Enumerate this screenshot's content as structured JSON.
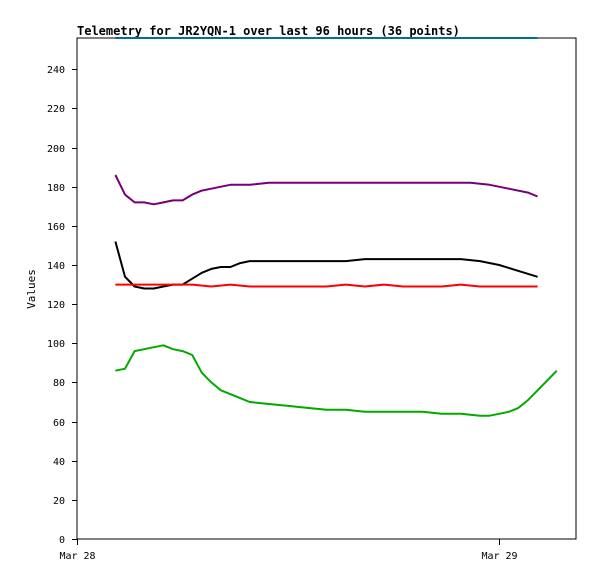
{
  "chart_data": {
    "type": "line",
    "title": "Telemetry for JR2YQN-1 over last 96 hours (36 points)",
    "xlabel": "",
    "ylabel": "Values",
    "ylim": [
      0,
      256
    ],
    "xlim": [
      0,
      52
    ],
    "y_ticks": [
      0,
      20,
      40,
      60,
      80,
      100,
      120,
      140,
      160,
      180,
      200,
      220,
      240
    ],
    "x_ticks": [
      {
        "x": 0,
        "label": "Mar 28"
      },
      {
        "x": 44,
        "label": "Mar 29"
      }
    ],
    "grid": false,
    "legend": "none",
    "series": [
      {
        "color": "#007090",
        "points": [
          [
            4,
            256
          ],
          [
            48,
            256
          ]
        ]
      },
      {
        "color": "#770077",
        "points": [
          [
            4,
            186
          ],
          [
            5,
            176
          ],
          [
            6,
            172
          ],
          [
            7,
            172
          ],
          [
            8,
            171
          ],
          [
            9,
            172
          ],
          [
            10,
            173
          ],
          [
            11,
            173
          ],
          [
            12,
            176
          ],
          [
            13,
            178
          ],
          [
            14,
            179
          ],
          [
            15,
            180
          ],
          [
            16,
            181
          ],
          [
            18,
            181
          ],
          [
            20,
            182
          ],
          [
            22,
            182
          ],
          [
            25,
            182
          ],
          [
            28,
            182
          ],
          [
            31,
            182
          ],
          [
            33,
            182
          ],
          [
            35,
            182
          ],
          [
            37,
            182
          ],
          [
            39,
            182
          ],
          [
            41,
            182
          ],
          [
            43,
            181
          ],
          [
            45,
            179
          ],
          [
            47,
            177
          ],
          [
            48,
            175
          ]
        ]
      },
      {
        "color": "#000000",
        "points": [
          [
            4,
            152
          ],
          [
            5,
            134
          ],
          [
            6,
            129
          ],
          [
            7,
            128
          ],
          [
            8,
            128
          ],
          [
            9,
            129
          ],
          [
            10,
            130
          ],
          [
            11,
            130
          ],
          [
            12,
            133
          ],
          [
            13,
            136
          ],
          [
            14,
            138
          ],
          [
            15,
            139
          ],
          [
            16,
            139
          ],
          [
            17,
            141
          ],
          [
            18,
            142
          ],
          [
            20,
            142
          ],
          [
            22,
            142
          ],
          [
            24,
            142
          ],
          [
            26,
            142
          ],
          [
            28,
            142
          ],
          [
            30,
            143
          ],
          [
            32,
            143
          ],
          [
            34,
            143
          ],
          [
            36,
            143
          ],
          [
            38,
            143
          ],
          [
            40,
            143
          ],
          [
            42,
            142
          ],
          [
            44,
            140
          ],
          [
            46,
            137
          ],
          [
            48,
            134
          ]
        ]
      },
      {
        "color": "#ff0000",
        "points": [
          [
            4,
            130
          ],
          [
            6,
            130
          ],
          [
            8,
            130
          ],
          [
            10,
            130
          ],
          [
            12,
            130
          ],
          [
            14,
            129
          ],
          [
            16,
            130
          ],
          [
            18,
            129
          ],
          [
            20,
            129
          ],
          [
            22,
            129
          ],
          [
            24,
            129
          ],
          [
            26,
            129
          ],
          [
            28,
            130
          ],
          [
            30,
            129
          ],
          [
            32,
            130
          ],
          [
            34,
            129
          ],
          [
            36,
            129
          ],
          [
            38,
            129
          ],
          [
            40,
            130
          ],
          [
            42,
            129
          ],
          [
            44,
            129
          ],
          [
            46,
            129
          ],
          [
            48,
            129
          ]
        ]
      },
      {
        "color": "#00aa00",
        "points": [
          [
            4,
            86
          ],
          [
            5,
            87
          ],
          [
            6,
            96
          ],
          [
            7,
            97
          ],
          [
            8,
            98
          ],
          [
            9,
            99
          ],
          [
            10,
            97
          ],
          [
            11,
            96
          ],
          [
            12,
            94
          ],
          [
            13,
            85
          ],
          [
            14,
            80
          ],
          [
            15,
            76
          ],
          [
            16,
            74
          ],
          [
            17,
            72
          ],
          [
            18,
            70
          ],
          [
            20,
            69
          ],
          [
            22,
            68
          ],
          [
            24,
            67
          ],
          [
            26,
            66
          ],
          [
            28,
            66
          ],
          [
            30,
            65
          ],
          [
            32,
            65
          ],
          [
            34,
            65
          ],
          [
            36,
            65
          ],
          [
            38,
            64
          ],
          [
            40,
            64
          ],
          [
            42,
            63
          ],
          [
            43,
            63
          ],
          [
            44,
            64
          ],
          [
            45,
            65
          ],
          [
            46,
            67
          ],
          [
            47,
            71
          ],
          [
            48,
            76
          ],
          [
            49,
            81
          ],
          [
            50,
            86
          ]
        ]
      }
    ]
  }
}
